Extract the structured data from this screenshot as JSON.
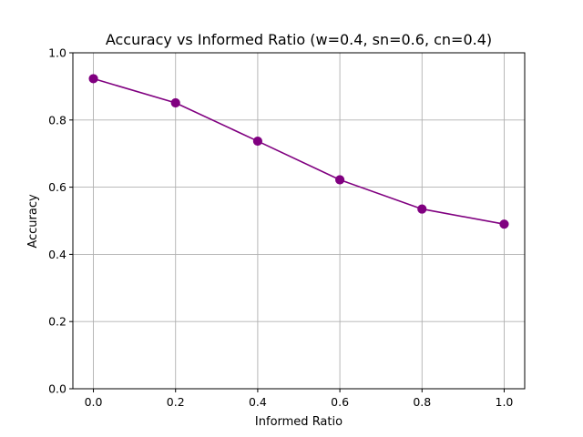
{
  "chart_data": {
    "type": "line",
    "title": "Accuracy vs Informed Ratio (w=0.4, sn=0.6, cn=0.4)",
    "xlabel": "Informed Ratio",
    "ylabel": "Accuracy",
    "x": [
      0.0,
      0.2,
      0.4,
      0.6,
      0.8,
      1.0
    ],
    "series": [
      {
        "values": [
          0.923,
          0.851,
          0.737,
          0.622,
          0.535,
          0.49
        ],
        "color": "#800080",
        "marker": "circle"
      }
    ],
    "xlim": [
      -0.05,
      1.05
    ],
    "ylim": [
      0.0,
      1.0
    ],
    "xticks": [
      0.0,
      0.2,
      0.4,
      0.6,
      0.8,
      1.0
    ],
    "xtick_labels": [
      "0.0",
      "0.2",
      "0.4",
      "0.6",
      "0.8",
      "1.0"
    ],
    "yticks": [
      0.0,
      0.2,
      0.4,
      0.6,
      0.8,
      1.0
    ],
    "ytick_labels": [
      "0.0",
      "0.2",
      "0.4",
      "0.6",
      "0.8",
      "1.0"
    ],
    "grid": true,
    "grid_color": "#b0b0b0",
    "legend": false
  }
}
